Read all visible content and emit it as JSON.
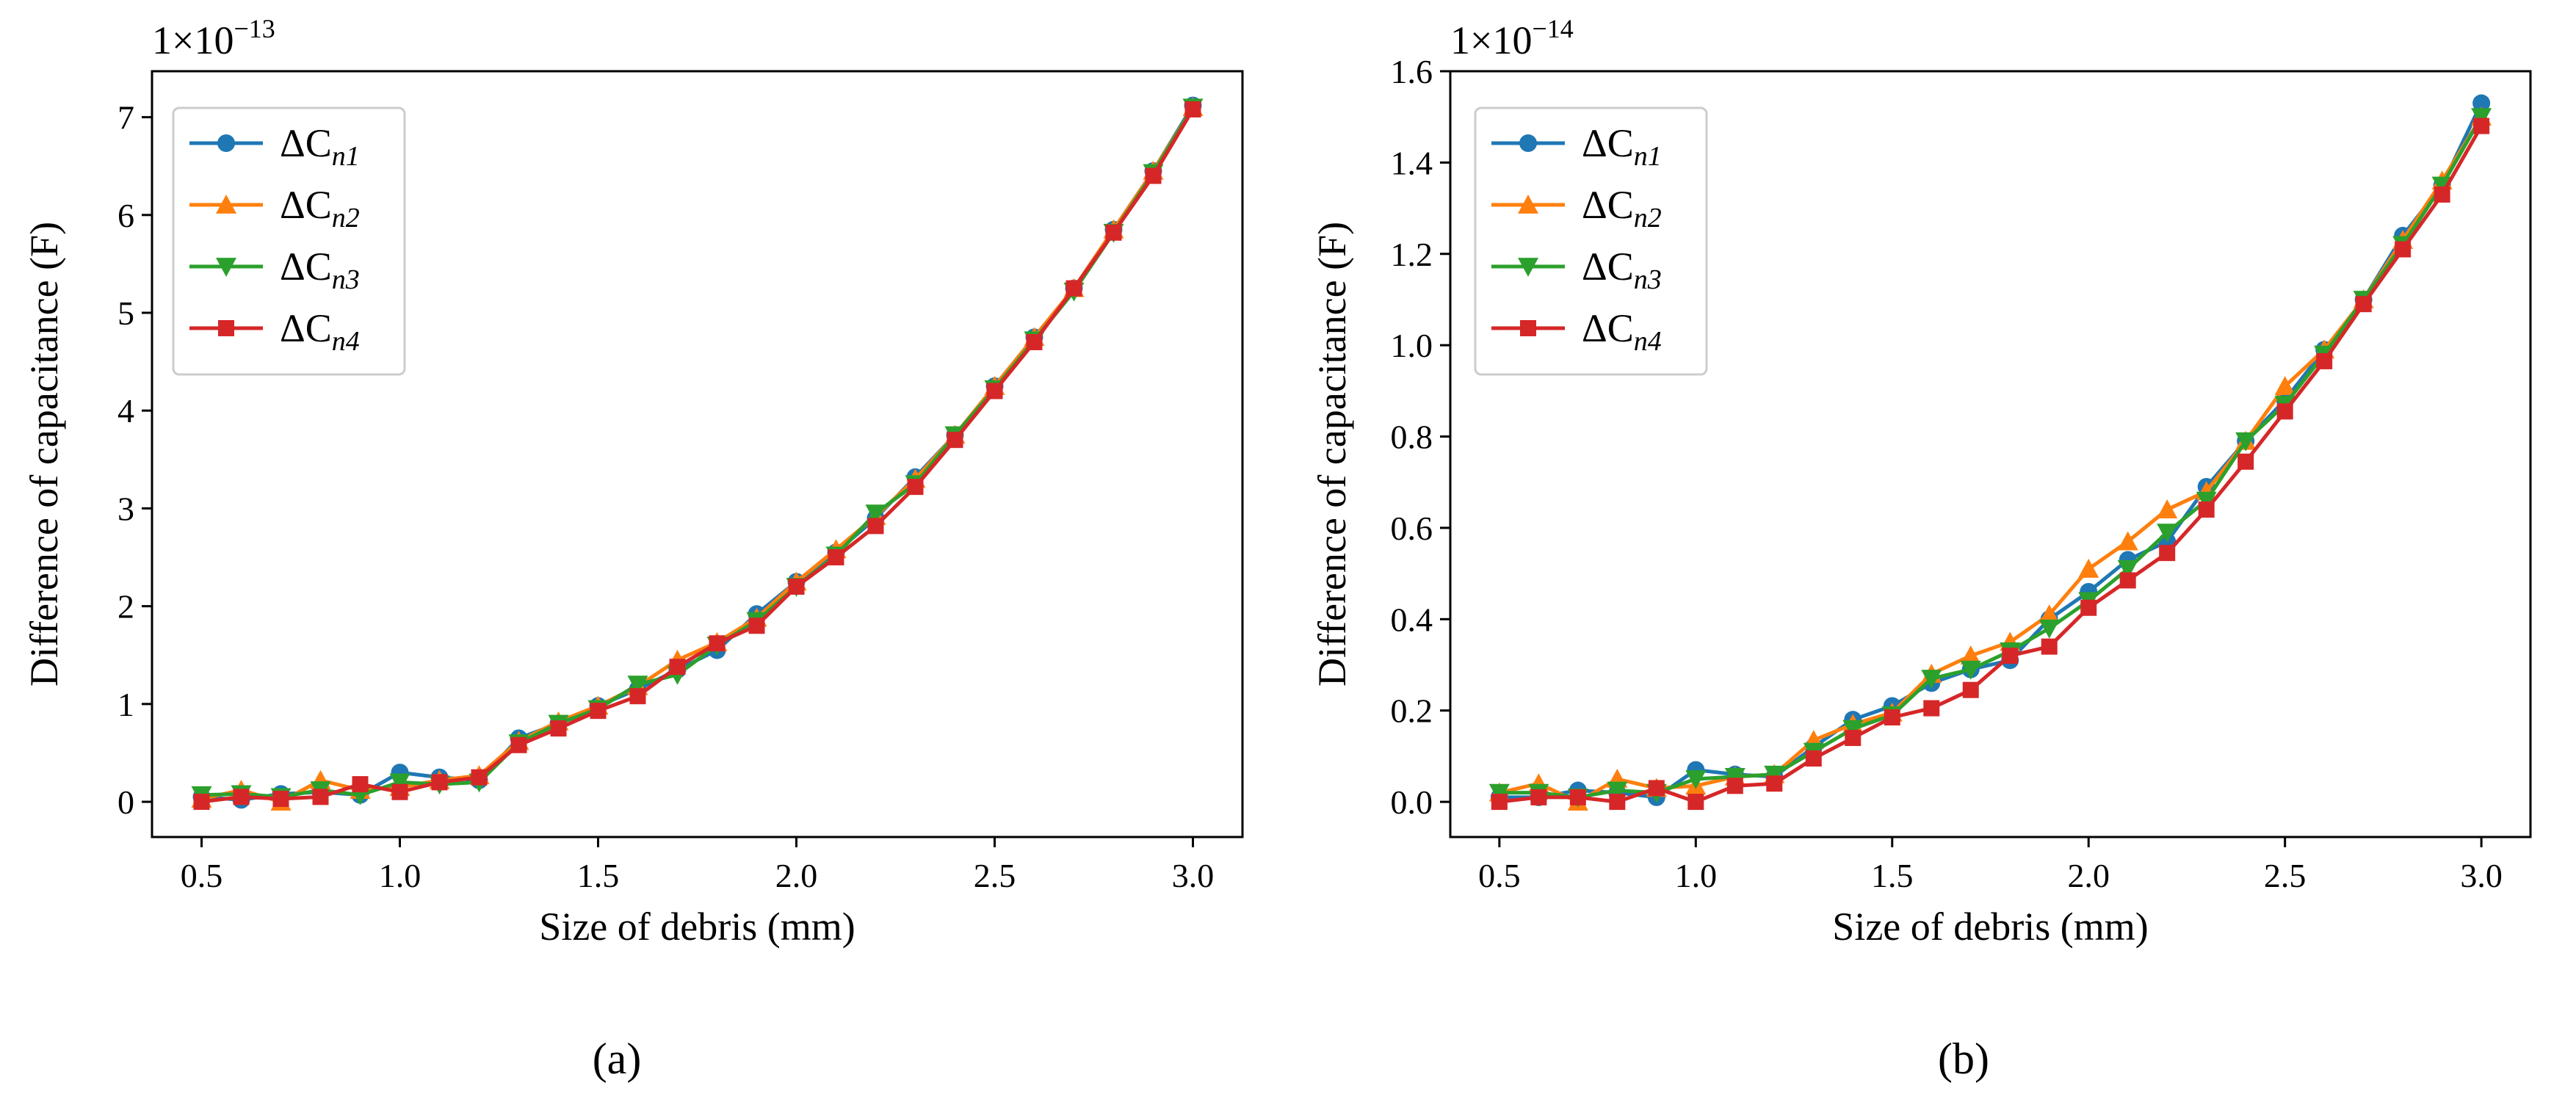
{
  "figure": {
    "panel_labels": [
      "(a)",
      "(b)"
    ]
  },
  "colors": {
    "n1": "#1f77b4",
    "n2": "#ff7f0e",
    "n3": "#2ca02c",
    "n4": "#d62728"
  },
  "chart_data": [
    {
      "type": "line",
      "panel": "(a)",
      "title": "",
      "xlabel": "Size of debris (mm)",
      "ylabel": "Difference of capacitance (F)",
      "y_offset_text": {
        "base": "1×10",
        "exponent": "−13"
      },
      "xlim": [
        0.375,
        3.125
      ],
      "ylim": [
        -0.36,
        7.47
      ],
      "xticks": [
        0.5,
        1.0,
        1.5,
        2.0,
        2.5,
        3.0
      ],
      "xtick_labels": [
        "0.5",
        "1.0",
        "1.5",
        "2.0",
        "2.5",
        "3.0"
      ],
      "yticks": [
        0,
        1,
        2,
        3,
        4,
        5,
        6,
        7
      ],
      "ytick_labels": [
        "0",
        "1",
        "2",
        "3",
        "4",
        "5",
        "6",
        "7"
      ],
      "legend_position": "upper-left",
      "x": [
        0.5,
        0.6,
        0.7,
        0.8,
        0.9,
        1.0,
        1.1,
        1.2,
        1.3,
        1.4,
        1.5,
        1.6,
        1.7,
        1.8,
        1.9,
        2.0,
        2.1,
        2.2,
        2.3,
        2.4,
        2.5,
        2.6,
        2.7,
        2.8,
        2.9,
        3.0
      ],
      "series": [
        {
          "name": "ΔC",
          "sub": "n1",
          "marker": "circle",
          "color_key": "n1",
          "values": [
            0.05,
            0.02,
            0.08,
            0.1,
            0.07,
            0.3,
            0.25,
            0.22,
            0.65,
            0.8,
            0.98,
            1.15,
            1.35,
            1.55,
            1.92,
            2.25,
            2.55,
            2.9,
            3.32,
            3.75,
            4.25,
            4.75,
            5.25,
            5.85,
            6.45,
            7.12
          ]
        },
        {
          "name": "ΔC",
          "sub": "n2",
          "marker": "triangle-up",
          "color_key": "n2",
          "values": [
            0.03,
            0.12,
            0.0,
            0.22,
            0.12,
            0.15,
            0.22,
            0.27,
            0.62,
            0.82,
            0.98,
            1.18,
            1.45,
            1.63,
            1.88,
            2.25,
            2.58,
            2.92,
            3.3,
            3.75,
            4.25,
            4.75,
            5.25,
            5.85,
            6.45,
            7.1
          ]
        },
        {
          "name": "ΔC",
          "sub": "n3",
          "marker": "triangle-down",
          "color_key": "n3",
          "values": [
            0.07,
            0.08,
            0.05,
            0.12,
            0.07,
            0.2,
            0.18,
            0.2,
            0.6,
            0.8,
            0.95,
            1.2,
            1.3,
            1.6,
            1.85,
            2.2,
            2.52,
            2.95,
            3.25,
            3.75,
            4.22,
            4.72,
            5.22,
            5.82,
            6.43,
            7.1
          ]
        },
        {
          "name": "ΔC",
          "sub": "n4",
          "marker": "square",
          "color_key": "n4",
          "values": [
            0.0,
            0.05,
            0.03,
            0.05,
            0.18,
            0.1,
            0.2,
            0.25,
            0.58,
            0.75,
            0.93,
            1.08,
            1.38,
            1.62,
            1.8,
            2.2,
            2.5,
            2.82,
            3.22,
            3.7,
            4.2,
            4.7,
            5.25,
            5.82,
            6.4,
            7.08
          ]
        }
      ]
    },
    {
      "type": "line",
      "panel": "(b)",
      "title": "",
      "xlabel": "Size of debris (mm)",
      "ylabel": "Difference of capacitance (F)",
      "y_offset_text": {
        "base": "1×10",
        "exponent": "−14"
      },
      "xlim": [
        0.375,
        3.125
      ],
      "ylim": [
        -0.077,
        1.6
      ],
      "xticks": [
        0.5,
        1.0,
        1.5,
        2.0,
        2.5,
        3.0
      ],
      "xtick_labels": [
        "0.5",
        "1.0",
        "1.5",
        "2.0",
        "2.5",
        "3.0"
      ],
      "yticks": [
        0.0,
        0.2,
        0.4,
        0.6,
        0.8,
        1.0,
        1.2,
        1.4,
        1.6
      ],
      "ytick_labels": [
        "0.0",
        "0.2",
        "0.4",
        "0.6",
        "0.8",
        "1.0",
        "1.2",
        "1.4",
        "1.6"
      ],
      "legend_position": "upper-left",
      "x": [
        0.5,
        0.6,
        0.7,
        0.8,
        0.9,
        1.0,
        1.1,
        1.2,
        1.3,
        1.4,
        1.5,
        1.6,
        1.7,
        1.8,
        1.9,
        2.0,
        2.1,
        2.2,
        2.3,
        2.4,
        2.5,
        2.6,
        2.7,
        2.8,
        2.9,
        3.0
      ],
      "series": [
        {
          "name": "ΔC",
          "sub": "n1",
          "marker": "circle",
          "color_key": "n1",
          "values": [
            0.01,
            0.01,
            0.025,
            0.02,
            0.01,
            0.07,
            0.06,
            0.055,
            0.12,
            0.18,
            0.21,
            0.26,
            0.29,
            0.31,
            0.4,
            0.46,
            0.53,
            0.57,
            0.69,
            0.79,
            0.88,
            0.99,
            1.1,
            1.24,
            1.35,
            1.53
          ]
        },
        {
          "name": "ΔC",
          "sub": "n2",
          "marker": "triangle-up",
          "color_key": "n2",
          "values": [
            0.02,
            0.04,
            0.0,
            0.05,
            0.03,
            0.035,
            0.055,
            0.06,
            0.135,
            0.17,
            0.195,
            0.28,
            0.32,
            0.35,
            0.41,
            0.51,
            0.57,
            0.64,
            0.68,
            0.79,
            0.91,
            0.99,
            1.1,
            1.23,
            1.36,
            1.5
          ]
        },
        {
          "name": "ΔC",
          "sub": "n3",
          "marker": "triangle-down",
          "color_key": "n3",
          "values": [
            0.02,
            0.02,
            0.01,
            0.025,
            0.02,
            0.05,
            0.055,
            0.06,
            0.11,
            0.16,
            0.19,
            0.27,
            0.29,
            0.33,
            0.38,
            0.44,
            0.51,
            0.59,
            0.66,
            0.79,
            0.87,
            0.98,
            1.1,
            1.22,
            1.35,
            1.5
          ]
        },
        {
          "name": "ΔC",
          "sub": "n4",
          "marker": "square",
          "color_key": "n4",
          "values": [
            0.0,
            0.01,
            0.01,
            0.0,
            0.03,
            0.0,
            0.035,
            0.04,
            0.095,
            0.14,
            0.185,
            0.205,
            0.245,
            0.32,
            0.34,
            0.425,
            0.485,
            0.545,
            0.64,
            0.745,
            0.855,
            0.965,
            1.09,
            1.21,
            1.33,
            1.48
          ]
        }
      ]
    }
  ]
}
